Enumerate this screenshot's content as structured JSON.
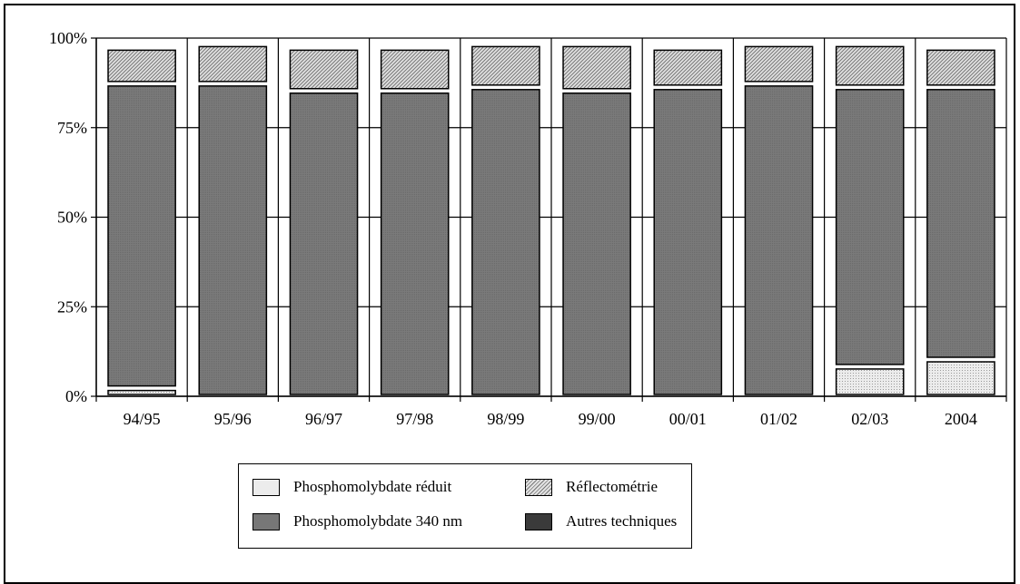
{
  "chart_data": {
    "type": "bar",
    "stacked": true,
    "percent": true,
    "title": "",
    "xlabel": "",
    "ylabel": "",
    "ylim": [
      0,
      100
    ],
    "yticks": [
      "0%",
      "25%",
      "50%",
      "75%",
      "100%"
    ],
    "categories": [
      "94/95",
      "95/96",
      "96/97",
      "97/98",
      "98/99",
      "99/00",
      "00/01",
      "01/02",
      "02/03",
      "2004"
    ],
    "series": [
      {
        "name": "Phosphomolybdate réduit",
        "pattern": "dots",
        "values": [
          2,
          0,
          0,
          0,
          0,
          0,
          0,
          0,
          8,
          10
        ]
      },
      {
        "name": "Phosphomolybdate 340 nm",
        "pattern": "dark",
        "values": [
          85,
          87,
          85,
          85,
          86,
          85,
          86,
          87,
          78,
          76
        ]
      },
      {
        "name": "Réflectométrie",
        "pattern": "hatch",
        "values": [
          10,
          11,
          12,
          12,
          12,
          13,
          11,
          11,
          12,
          11
        ]
      },
      {
        "name": "Autres techniques",
        "pattern": "black",
        "values": [
          0,
          0,
          0,
          0,
          0,
          0,
          0,
          0,
          0,
          0
        ]
      }
    ],
    "grid": true,
    "legend_position": "bottom"
  },
  "legend": {
    "items": [
      {
        "label": "Phosphomolybdate réduit",
        "pattern": "dots"
      },
      {
        "label": "Réflectométrie",
        "pattern": "hatch"
      },
      {
        "label": "Phosphomolybdate 340 nm",
        "pattern": "dark"
      },
      {
        "label": "Autres techniques",
        "pattern": "black"
      }
    ]
  }
}
